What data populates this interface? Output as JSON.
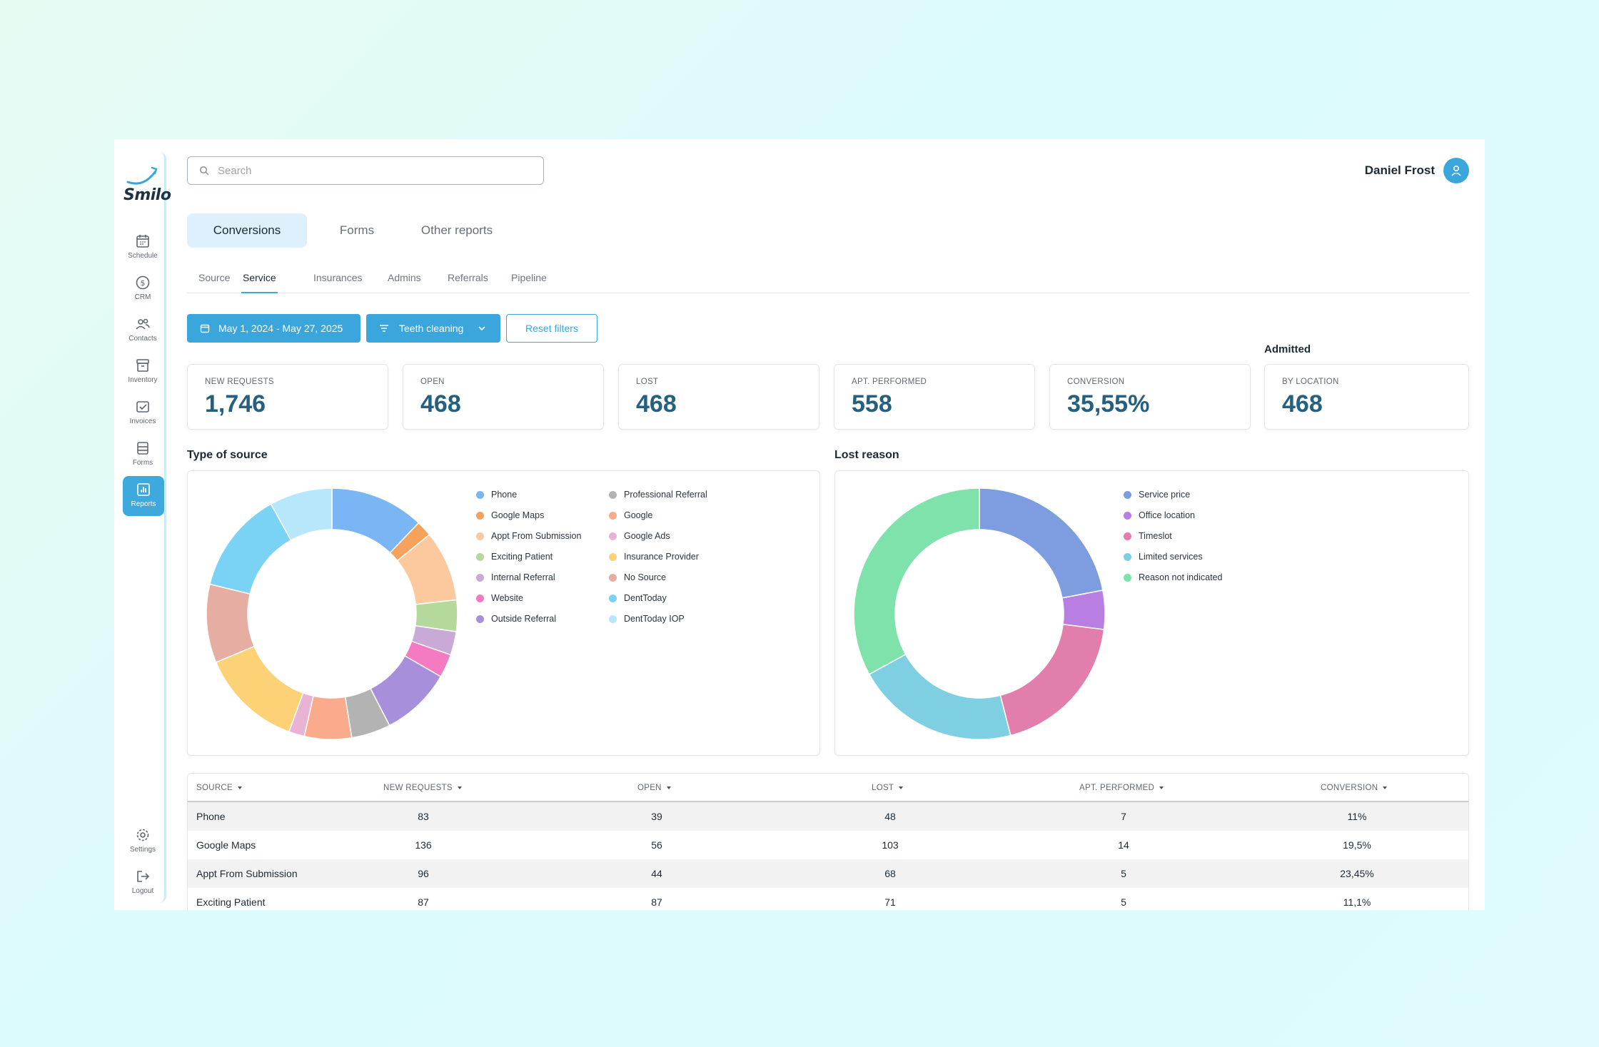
{
  "app": {
    "logo": "Smilo"
  },
  "sidebar": {
    "items": [
      {
        "label": "Schedule",
        "icon": "calendar-icon"
      },
      {
        "label": "CRM",
        "icon": "dollar-icon"
      },
      {
        "label": "Contacts",
        "icon": "contacts-icon"
      },
      {
        "label": "Inventory",
        "icon": "box-icon"
      },
      {
        "label": "Invoices",
        "icon": "invoice-icon"
      },
      {
        "label": "Forms",
        "icon": "forms-icon"
      },
      {
        "label": "Reports",
        "icon": "reports-icon",
        "active": true
      }
    ],
    "bottom": [
      {
        "label": "Settings",
        "icon": "gear-icon"
      },
      {
        "label": "Logout",
        "icon": "logout-icon"
      }
    ]
  },
  "header": {
    "search_placeholder": "Search",
    "user_name": "Daniel Frost"
  },
  "tabs": [
    "Conversions",
    "Forms",
    "Other reports"
  ],
  "subtabs": [
    "Source",
    "Service",
    "Insurances",
    "Admins",
    "Referrals",
    "Pipeline"
  ],
  "filters": {
    "date_range": "May 1, 2024 - May 27, 2025",
    "service": "Teeth cleaning",
    "reset": "Reset filters"
  },
  "admitted_label": "Admitted",
  "stats": [
    {
      "label": "NEW REQUESTS",
      "value": "1,746"
    },
    {
      "label": "OPEN",
      "value": "468"
    },
    {
      "label": "LOST",
      "value": "468"
    },
    {
      "label": "APT. PERFORMED",
      "value": "558"
    },
    {
      "label": "CONVERSION",
      "value": "35,55%"
    },
    {
      "label": "BY LOCATION",
      "value": "468"
    }
  ],
  "chart_data": [
    {
      "type": "pie",
      "title": "Type of source",
      "categories": [
        "Phone",
        "Google Maps",
        "Appt From Submission",
        "Exciting Patient",
        "Internal Referral",
        "Website",
        "Outside Referral",
        "Professional Referral",
        "Google",
        "Google Ads",
        "Insurance Provider",
        "No Source",
        "DentToday",
        "DentToday IOP"
      ],
      "values": [
        12,
        2,
        9,
        4,
        3,
        3,
        9,
        5,
        6,
        2,
        13,
        10,
        13,
        8
      ],
      "colors": [
        "#7ab6f3",
        "#f6a25c",
        "#fcc99e",
        "#b4d99a",
        "#c9a9d6",
        "#f47ac2",
        "#a88fdb",
        "#b3b3b3",
        "#f9ab8c",
        "#e9b4d4",
        "#fdd176",
        "#e6aea2",
        "#7ad2f5",
        "#b8e6fa"
      ]
    },
    {
      "type": "pie",
      "title": "Lost reason",
      "categories": [
        "Service price",
        "Office location",
        "Timeslot",
        "Limited services",
        "Reason not indicated"
      ],
      "values": [
        22,
        5,
        19,
        21,
        33
      ],
      "colors": [
        "#7e9de0",
        "#b87ee2",
        "#e27eab",
        "#7ecfe2",
        "#7ee2aa"
      ]
    }
  ],
  "table": {
    "headers": [
      "SOURCE",
      "NEW REQUESTS",
      "OPEN",
      "LOST",
      "APT. PERFORMED",
      "CONVERSION"
    ],
    "rows": [
      [
        "Phone",
        "83",
        "39",
        "48",
        "7",
        "11%"
      ],
      [
        "Google Maps",
        "136",
        "56",
        "103",
        "14",
        "19,5%"
      ],
      [
        "Appt From Submission",
        "96",
        "44",
        "68",
        "5",
        "23,45%"
      ],
      [
        "Exciting Patient",
        "87",
        "87",
        "71",
        "5",
        "11,1%"
      ]
    ]
  }
}
